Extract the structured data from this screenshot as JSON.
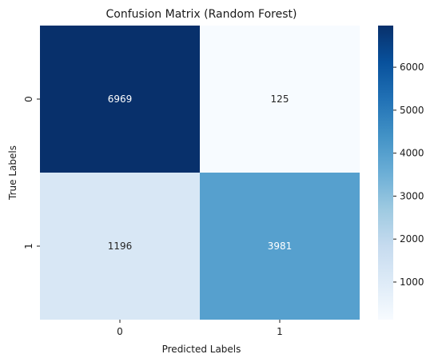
{
  "chart_data": {
    "type": "heatmap",
    "title": "Confusion Matrix (Random Forest)",
    "xlabel": "Predicted Labels",
    "ylabel": "True Labels",
    "x_categories": [
      "0",
      "1"
    ],
    "y_categories": [
      "0",
      "1"
    ],
    "matrix": [
      [
        6969,
        125
      ],
      [
        1196,
        3981
      ]
    ],
    "colormap": "Blues",
    "colorbar": {
      "vmin": 125,
      "vmax": 6969,
      "ticks": [
        1000,
        2000,
        3000,
        4000,
        5000,
        6000
      ],
      "tick_labels": [
        "1000",
        "2000",
        "3000",
        "4000",
        "5000",
        "6000"
      ]
    },
    "colors": {
      "low": "#f7fbff",
      "high": "#08306b",
      "text_dark": "#262626",
      "text_light": "#ffffff"
    }
  }
}
